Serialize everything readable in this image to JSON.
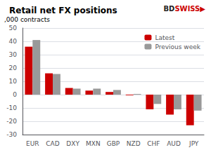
{
  "chart_data": {
    "type": "bar",
    "title": "Retail net FX positions",
    "ylabel": ",000 contracts",
    "categories": [
      "EUR",
      "CAD",
      "DXY",
      "MXN",
      "GBP",
      "NZD",
      "CHF",
      "AUD",
      "JPY"
    ],
    "series": [
      {
        "name": "Latest",
        "color": "#cc0000",
        "values": [
          36,
          16,
          5,
          3,
          2,
          -0.5,
          -11,
          -15,
          -23
        ]
      },
      {
        "name": "Previous week",
        "color": "#999999",
        "values": [
          41,
          15.5,
          4.5,
          4.5,
          3.5,
          0.5,
          -7,
          -11,
          -12
        ]
      }
    ],
    "ylim": [
      -30,
      50
    ],
    "yticks": [
      -30,
      -20,
      -10,
      0,
      10,
      20,
      30,
      40,
      50
    ],
    "grid": true,
    "legend": "upper right",
    "annotations": [
      {
        "text": "BD",
        "color": "#222222"
      },
      {
        "text": "SWISS",
        "color": "#cc0000"
      },
      {
        "text": "▶",
        "color": "#cc0000"
      }
    ]
  }
}
